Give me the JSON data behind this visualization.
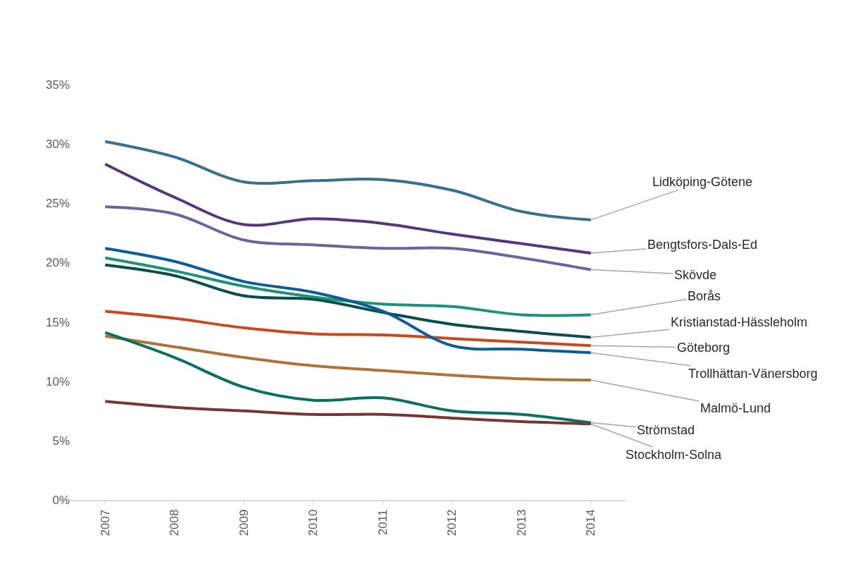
{
  "chart_data": {
    "type": "line",
    "categories": [
      "2007",
      "2008",
      "2009",
      "2010",
      "2011",
      "2012",
      "2013",
      "2014"
    ],
    "ylim": [
      0,
      35
    ],
    "yticks": [
      {
        "value": 0,
        "label": "0%"
      },
      {
        "value": 5,
        "label": "5%"
      },
      {
        "value": 10,
        "label": "10%"
      },
      {
        "value": 15,
        "label": "15%"
      },
      {
        "value": 20,
        "label": "20%"
      },
      {
        "value": 25,
        "label": "25%"
      },
      {
        "value": 30,
        "label": "30%"
      },
      {
        "value": 35,
        "label": "35%"
      }
    ],
    "grid": false,
    "legend": false,
    "marker": "none",
    "line_style": "solid",
    "series": [
      {
        "name": "Lidköping-Götene",
        "color": "#3a708e",
        "values": [
          30.2,
          28.9,
          26.8,
          26.9,
          27.0,
          26.1,
          24.3,
          23.6
        ]
      },
      {
        "name": "Bengtsfors-Dals-Ed",
        "color": "#54377d",
        "values": [
          28.3,
          25.5,
          23.2,
          23.7,
          23.3,
          22.4,
          21.6,
          20.8
        ]
      },
      {
        "name": "Skövde",
        "color": "#6c649a",
        "values": [
          24.7,
          24.1,
          21.9,
          21.5,
          21.2,
          21.2,
          20.4,
          19.4
        ]
      },
      {
        "name": "Borås",
        "color": "#1f927a",
        "values": [
          20.4,
          19.3,
          18.0,
          17.1,
          16.5,
          16.3,
          15.6,
          15.6
        ]
      },
      {
        "name": "Kristianstad-Hässleholm",
        "color": "#0b4d4d",
        "values": [
          19.8,
          18.9,
          17.2,
          16.9,
          15.8,
          14.8,
          14.2,
          13.7
        ]
      },
      {
        "name": "Göteborg",
        "color": "#c9491e",
        "values": [
          15.9,
          15.3,
          14.5,
          14.0,
          13.9,
          13.6,
          13.3,
          13.0
        ]
      },
      {
        "name": "Trollhättan-Vänersborg",
        "color": "#0a5e96",
        "values": [
          21.2,
          20.1,
          18.4,
          17.5,
          15.9,
          13.0,
          12.7,
          12.4
        ]
      },
      {
        "name": "Malmö-Lund",
        "color": "#b07236",
        "values": [
          13.8,
          12.9,
          12.0,
          11.3,
          10.9,
          10.5,
          10.2,
          10.1
        ]
      },
      {
        "name": "Strömstad",
        "color": "#0a7060",
        "values": [
          14.1,
          12.0,
          9.5,
          8.4,
          8.6,
          7.5,
          7.2,
          6.5
        ]
      },
      {
        "name": "Stockholm-Solna",
        "color": "#773634",
        "values": [
          8.3,
          7.8,
          7.5,
          7.2,
          7.2,
          6.9,
          6.6,
          6.4
        ]
      }
    ]
  }
}
